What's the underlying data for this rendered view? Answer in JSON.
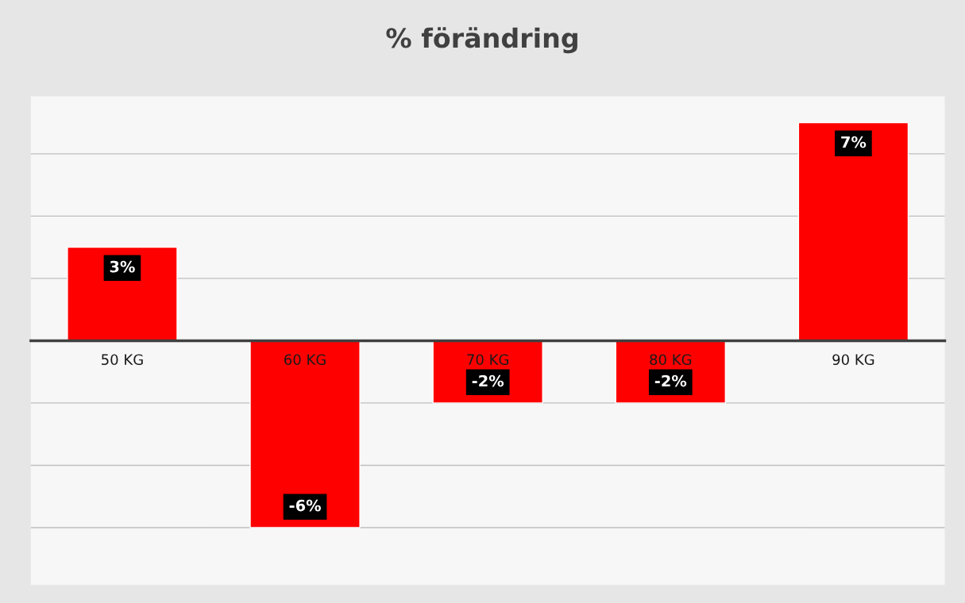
{
  "chart_data": {
    "type": "bar",
    "title": "% förändring",
    "categories": [
      "50 KG",
      "60 KG",
      "70 KG",
      "80 KG",
      "90 KG"
    ],
    "values": [
      3,
      -6,
      -2,
      -2,
      7
    ],
    "color": "#ff0000",
    "value_labels": [
      "3%",
      "-6%",
      "-2%",
      "-2%",
      "7%"
    ],
    "grid": "y",
    "tick_labels": "x"
  }
}
